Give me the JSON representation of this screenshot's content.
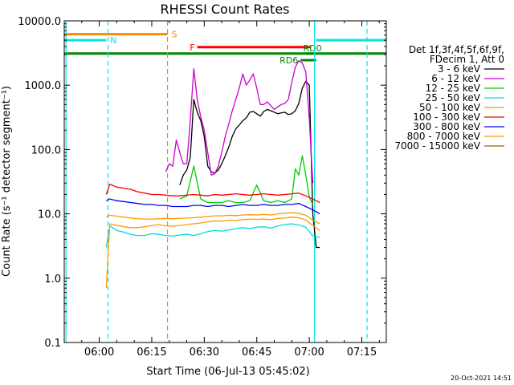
{
  "chart_data": {
    "type": "line",
    "title": "RHESSI Count Rates",
    "xlabel": "Start Time (06-Jul-13 05:45:02)",
    "ylabel": "Count Rate (s⁻¹ detector segment⁻¹)",
    "x_ticks": [
      "06:00",
      "06:15",
      "06:30",
      "06:45",
      "07:00",
      "07:15"
    ],
    "x_tick_minutes": [
      15,
      30,
      45,
      60,
      75,
      90
    ],
    "x_range_minutes": [
      5,
      97
    ],
    "y_ticks": [
      "0.1",
      "1.0",
      "10.0",
      "100.0",
      "1000.0",
      "10000.0"
    ],
    "ylim": [
      0.1,
      10000
    ],
    "y_scale": "log",
    "legend_header": [
      "Det 1f,3f,4f,5f,6f,9f,",
      "FDecim 1, Att 0"
    ],
    "legend_position": "right",
    "series": [
      {
        "name": "3 - 6 keV",
        "color": "#000000",
        "x": [
          38,
          39,
          40,
          41,
          42,
          43,
          44,
          45,
          46,
          47,
          48,
          49,
          50,
          51,
          52,
          53,
          54,
          55,
          56,
          57,
          58,
          59,
          60,
          61,
          62,
          63,
          64,
          65,
          66,
          67,
          68,
          69,
          70,
          71,
          72,
          73,
          74,
          75,
          76,
          77,
          78
        ],
        "y": [
          28,
          40,
          48,
          75,
          600,
          380,
          280,
          160,
          55,
          45,
          43,
          48,
          60,
          80,
          110,
          160,
          210,
          240,
          280,
          310,
          380,
          390,
          360,
          330,
          390,
          420,
          400,
          380,
          360,
          370,
          380,
          350,
          360,
          400,
          520,
          900,
          1150,
          1000,
          10,
          3,
          3
        ]
      },
      {
        "name": "6 - 12 keV",
        "color": "#cc00cc",
        "x": [
          34,
          35,
          36,
          37,
          38,
          39,
          40,
          41,
          42,
          43,
          44,
          45,
          46,
          47,
          48,
          49,
          50,
          51,
          52,
          53,
          54,
          55,
          56,
          57,
          58,
          59,
          60,
          61,
          62,
          63,
          64,
          65,
          66,
          67,
          68,
          69,
          70,
          71,
          72,
          73,
          74,
          75,
          76
        ],
        "y": [
          45,
          60,
          55,
          140,
          90,
          60,
          60,
          280,
          1800,
          600,
          320,
          200,
          90,
          40,
          42,
          55,
          90,
          160,
          250,
          400,
          600,
          900,
          1500,
          1000,
          1200,
          1500,
          900,
          500,
          500,
          550,
          480,
          420,
          460,
          500,
          520,
          600,
          1100,
          1900,
          2400,
          2200,
          1600,
          300,
          30
        ]
      },
      {
        "name": "12 - 25 keV",
        "color": "#00cc00",
        "x": [
          38,
          40,
          42,
          44,
          46,
          48,
          50,
          52,
          54,
          56,
          58,
          60,
          62,
          64,
          66,
          68,
          70,
          71,
          72,
          73,
          74,
          75,
          76
        ],
        "y": [
          17,
          19,
          55,
          17,
          15,
          15,
          15,
          16,
          15,
          15,
          16,
          28,
          16,
          15,
          16,
          15,
          17,
          50,
          40,
          80,
          40,
          18,
          14
        ]
      },
      {
        "name": "25 - 50 keV",
        "color": "#00dddd",
        "x": [
          17,
          18,
          20,
          22,
          24,
          26,
          28,
          30,
          32,
          34,
          36,
          38,
          40,
          42,
          44,
          46,
          48,
          50,
          52,
          54,
          56,
          58,
          60,
          62,
          64,
          66,
          68,
          70,
          72,
          74,
          76,
          78
        ],
        "y": [
          3,
          6.5,
          5.5,
          5.2,
          4.8,
          4.6,
          4.6,
          4.9,
          4.8,
          4.6,
          4.5,
          4.7,
          4.8,
          4.6,
          4.9,
          5.3,
          5.5,
          5.4,
          5.6,
          5.9,
          6.1,
          5.9,
          6.2,
          6.3,
          6,
          6.5,
          6.8,
          7,
          6.7,
          6.2,
          4.5,
          4.3
        ]
      },
      {
        "name": "50 - 100 keV",
        "color": "#ff9900",
        "x": [
          17,
          18,
          20,
          22,
          24,
          26,
          28,
          30,
          32,
          34,
          36,
          38,
          40,
          42,
          44,
          46,
          48,
          50,
          52,
          54,
          56,
          58,
          60,
          62,
          64,
          66,
          68,
          70,
          72,
          74,
          76,
          78
        ],
        "y": [
          0.7,
          7,
          6.6,
          6.3,
          6.1,
          6.1,
          6.3,
          6.6,
          6.8,
          6.5,
          6.4,
          6.6,
          6.8,
          7,
          7.2,
          7.5,
          7.8,
          7.7,
          8,
          7.9,
          8.1,
          8.3,
          8.2,
          8.3,
          8.1,
          8.5,
          8.6,
          8.9,
          8.7,
          8,
          6.6,
          5.5
        ]
      },
      {
        "name": "100 - 300 keV",
        "color": "#ff0000",
        "x": [
          17,
          18,
          20,
          22,
          24,
          26,
          28,
          30,
          32,
          34,
          36,
          38,
          40,
          42,
          44,
          46,
          48,
          50,
          52,
          54,
          56,
          58,
          60,
          62,
          64,
          66,
          68,
          70,
          72,
          74,
          76,
          78
        ],
        "y": [
          20,
          29,
          26,
          25,
          24,
          22,
          21,
          20,
          20,
          19.5,
          19,
          19,
          19.5,
          20,
          19.5,
          19,
          20,
          19.5,
          20,
          20.5,
          20,
          19.5,
          20,
          20.5,
          20,
          19.5,
          20,
          20.5,
          21,
          19,
          17,
          15
        ]
      },
      {
        "name": "300 - 800 keV",
        "color": "#0000ff",
        "x": [
          17,
          18,
          20,
          22,
          24,
          26,
          28,
          30,
          32,
          34,
          36,
          38,
          40,
          42,
          44,
          46,
          48,
          50,
          52,
          54,
          56,
          58,
          60,
          62,
          64,
          66,
          68,
          70,
          72,
          74,
          76,
          78
        ],
        "y": [
          16,
          17,
          16,
          15.5,
          15,
          14.5,
          14,
          14,
          13.5,
          13.5,
          13,
          13,
          13,
          13.5,
          13.5,
          13,
          13.5,
          13.5,
          13,
          13.5,
          14,
          13.5,
          13.5,
          14,
          13.5,
          13.5,
          14,
          14,
          14.5,
          13,
          11.5,
          10
        ]
      },
      {
        "name": "800 - 7000 keV",
        "color": "#ff9900",
        "x": [
          17,
          18,
          20,
          22,
          24,
          26,
          28,
          30,
          32,
          34,
          36,
          38,
          40,
          42,
          44,
          46,
          48,
          50,
          52,
          54,
          56,
          58,
          60,
          62,
          64,
          66,
          68,
          70,
          72,
          74,
          76,
          78
        ],
        "y": [
          9,
          9.5,
          9.2,
          8.9,
          8.6,
          8.4,
          8.3,
          8.3,
          8.4,
          8.5,
          8.4,
          8.5,
          8.6,
          8.7,
          8.9,
          9.1,
          9.3,
          9.3,
          9.5,
          9.4,
          9.6,
          9.7,
          9.6,
          9.8,
          9.6,
          10,
          10.2,
          10.4,
          10.2,
          9.5,
          8,
          7
        ]
      },
      {
        "name": "7000 - 15000 keV",
        "color": "#996600",
        "x": [],
        "y": []
      }
    ],
    "vertical_lines": [
      {
        "x": 5.5,
        "color": "#00e5e5",
        "style": "solid"
      },
      {
        "x": 17.5,
        "color": "#00e5e5",
        "style": "dashed"
      },
      {
        "x": 34.5,
        "color": "#ff8800",
        "style": "dashed"
      },
      {
        "x": 76.5,
        "color": "#00e5e5",
        "style": "solid"
      },
      {
        "x": 91.5,
        "color": "#00e5e5",
        "style": "dashed"
      }
    ],
    "annotations": [
      {
        "label": "S",
        "color": "#ff8800",
        "x_start": 5,
        "x_end": 34.5,
        "y": 6200,
        "label_at": "end"
      },
      {
        "label": "N",
        "color": "#00e5e5",
        "x_start": 5,
        "x_end": 17,
        "y": 5000,
        "label_at": "end"
      },
      {
        "label": "",
        "color": "#00e5e5",
        "x_start": 77,
        "x_end": 97,
        "y": 5000,
        "label_at": "none"
      },
      {
        "label": "F",
        "color": "#ff0000",
        "x_start": 43,
        "x_end": 75.5,
        "y": 3900,
        "label_at": "start"
      },
      {
        "label": "",
        "color": "#008800",
        "x_start": 5,
        "x_end": 97,
        "y": 3100,
        "label_at": "none"
      },
      {
        "label": "RD0",
        "color": "#008800",
        "x_start": 74,
        "x_end": 76,
        "y": 3100,
        "label_at": "above"
      },
      {
        "label": "RD6",
        "color": "#008800",
        "x_start": 72.5,
        "x_end": 77,
        "y": 2450,
        "label_at": "start"
      }
    ],
    "timestamp": "20-Oct-2021 14:51"
  }
}
